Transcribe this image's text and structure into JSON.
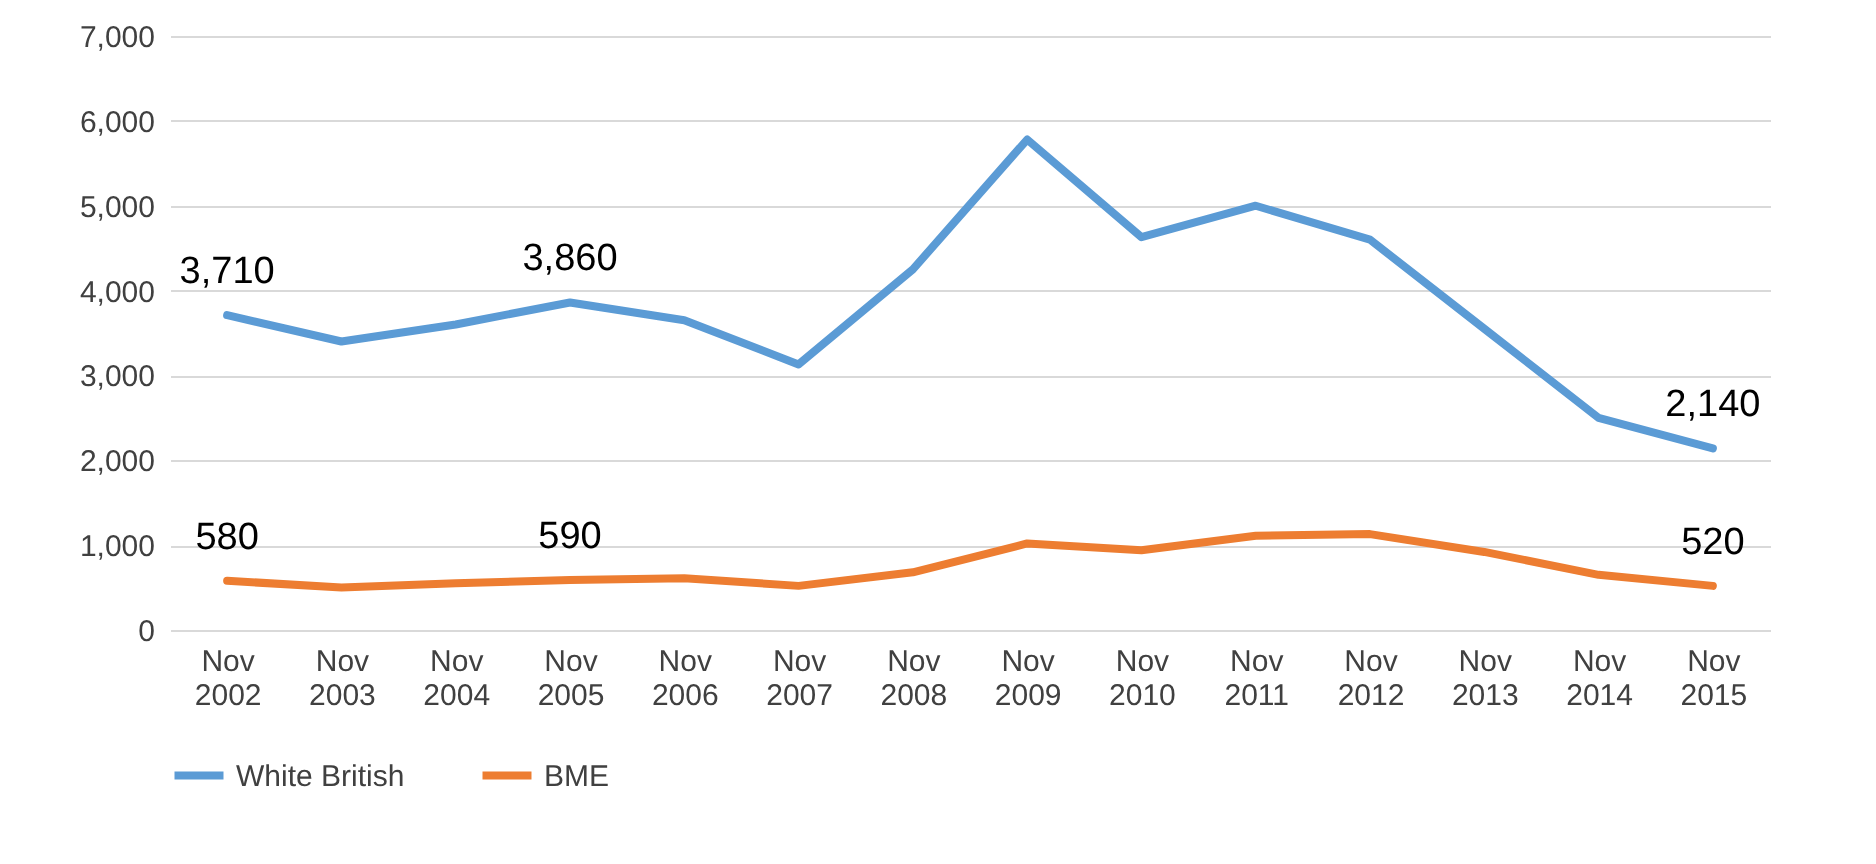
{
  "chart_data": {
    "type": "line",
    "categories": [
      "Nov 2002",
      "Nov 2003",
      "Nov 2004",
      "Nov 2005",
      "Nov 2006",
      "Nov 2007",
      "Nov 2008",
      "Nov 2009",
      "Nov 2010",
      "Nov 2011",
      "Nov 2012",
      "Nov 2013",
      "Nov 2014",
      "Nov 2015"
    ],
    "series": [
      {
        "name": "White British",
        "color": "#5b9bd5",
        "values": [
          3710,
          3400,
          3600,
          3860,
          3650,
          3130,
          4250,
          5780,
          4630,
          5000,
          4600,
          3550,
          2500,
          2140
        ],
        "value_labels": [
          "3,710",
          null,
          null,
          "3,860",
          null,
          null,
          null,
          null,
          null,
          null,
          null,
          null,
          null,
          "2,140"
        ]
      },
      {
        "name": "BME",
        "color": "#ed7d31",
        "values": [
          580,
          500,
          550,
          590,
          610,
          520,
          680,
          1020,
          940,
          1110,
          1130,
          920,
          650,
          520
        ],
        "value_labels": [
          "580",
          null,
          null,
          "590",
          null,
          null,
          null,
          null,
          null,
          null,
          null,
          null,
          null,
          "520"
        ]
      }
    ],
    "ylim": [
      0,
      7000
    ],
    "yticks": [
      0,
      {
        "value": 1000,
        "label": "1,000"
      },
      {
        "value": 2000,
        "label": "2,000"
      },
      {
        "value": 3000,
        "label": "3,000"
      },
      {
        "value": 4000,
        "label": "4,000"
      },
      {
        "value": 5000,
        "label": "5,000"
      },
      {
        "value": 6000,
        "label": "6,000"
      },
      {
        "value": 7000,
        "label": "7,000"
      }
    ],
    "grid": "y",
    "legend": "bottom",
    "marker": "none",
    "line_style": "solid"
  }
}
